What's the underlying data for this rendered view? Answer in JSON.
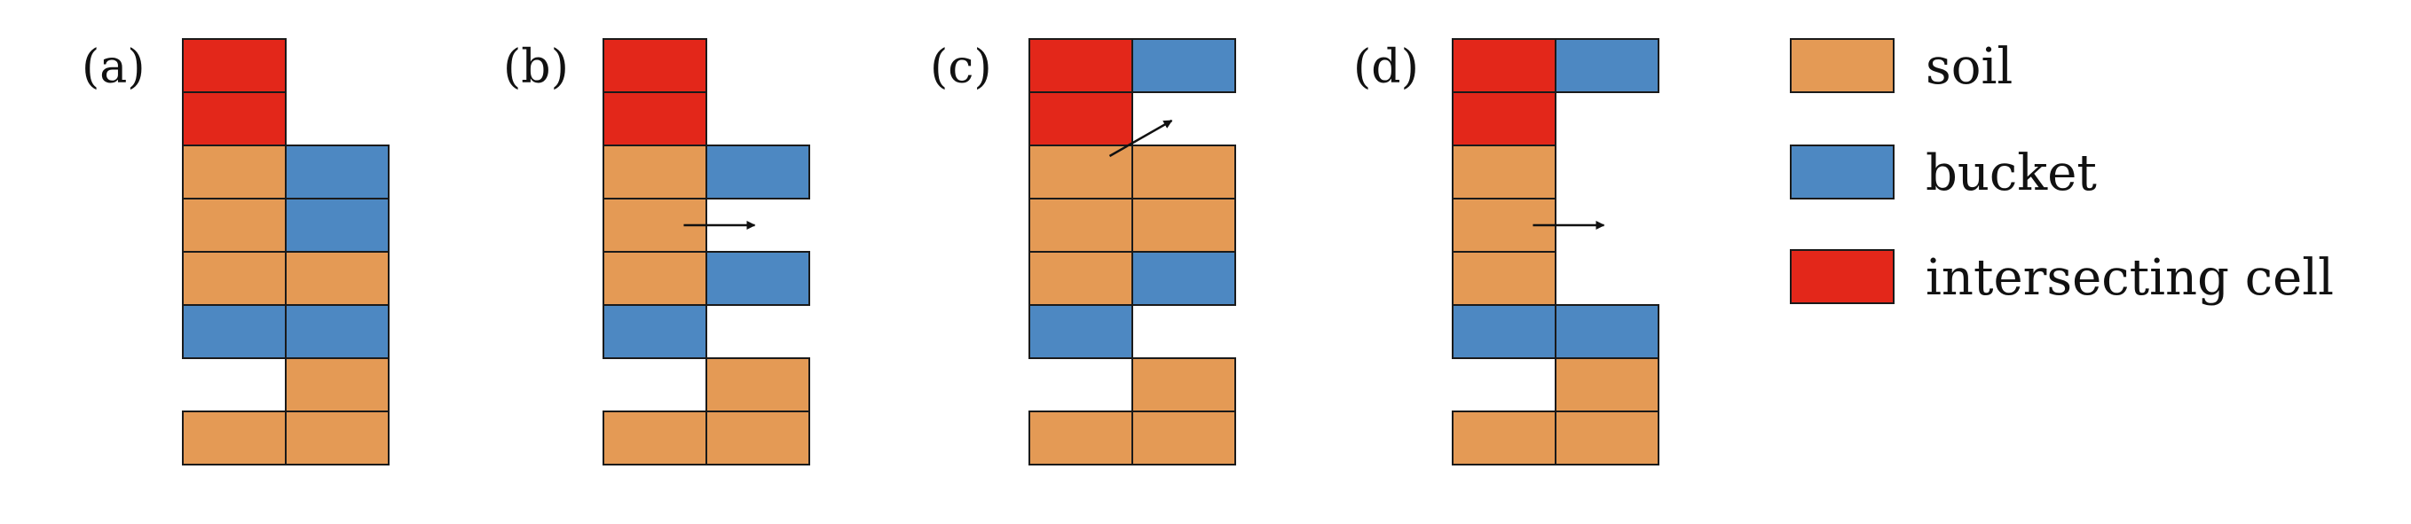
{
  "colors": {
    "soil": "#E49A55",
    "bucket": "#4D88C2",
    "intersect": "#E3271A",
    "stroke": "#1a1a1a",
    "arrow": "#111111"
  },
  "legend": [
    {
      "key": "soil",
      "label": "soil"
    },
    {
      "key": "bucket",
      "label": "bucket"
    },
    {
      "key": "intersect",
      "label": "intersecting cell"
    }
  ],
  "panels": [
    {
      "label": "(a)",
      "grid": [
        [
          "intersect",
          null
        ],
        [
          "intersect",
          null
        ],
        [
          "soil",
          "bucket"
        ],
        [
          "soil",
          "bucket"
        ],
        [
          "soil",
          "soil"
        ],
        [
          "bucket",
          "bucket"
        ],
        [
          null,
          "soil"
        ],
        [
          "soil",
          "soil"
        ]
      ],
      "arrow": null
    },
    {
      "label": "(b)",
      "grid": [
        [
          "intersect",
          null
        ],
        [
          "intersect",
          null
        ],
        [
          "soil",
          "bucket"
        ],
        [
          "soil",
          null
        ],
        [
          "soil",
          "bucket"
        ],
        [
          "bucket",
          null
        ],
        [
          null,
          "soil"
        ],
        [
          "soil",
          "soil"
        ]
      ],
      "arrow": {
        "from_row": 3,
        "direction": "right"
      }
    },
    {
      "label": "(c)",
      "grid": [
        [
          "intersect",
          "bucket"
        ],
        [
          "intersect",
          null
        ],
        [
          "soil",
          "soil"
        ],
        [
          "soil",
          "soil"
        ],
        [
          "soil",
          "bucket"
        ],
        [
          "bucket",
          null
        ],
        [
          null,
          "soil"
        ],
        [
          "soil",
          "soil"
        ]
      ],
      "arrow": {
        "from_row": 2,
        "direction": "up-right"
      }
    },
    {
      "label": "(d)",
      "grid": [
        [
          "intersect",
          "bucket"
        ],
        [
          "intersect",
          null
        ],
        [
          "soil",
          null
        ],
        [
          "soil",
          null
        ],
        [
          "soil",
          null
        ],
        [
          "bucket",
          "bucket"
        ],
        [
          null,
          "soil"
        ],
        [
          "soil",
          "soil"
        ]
      ],
      "arrow": {
        "from_row": 3,
        "direction": "right"
      }
    }
  ]
}
